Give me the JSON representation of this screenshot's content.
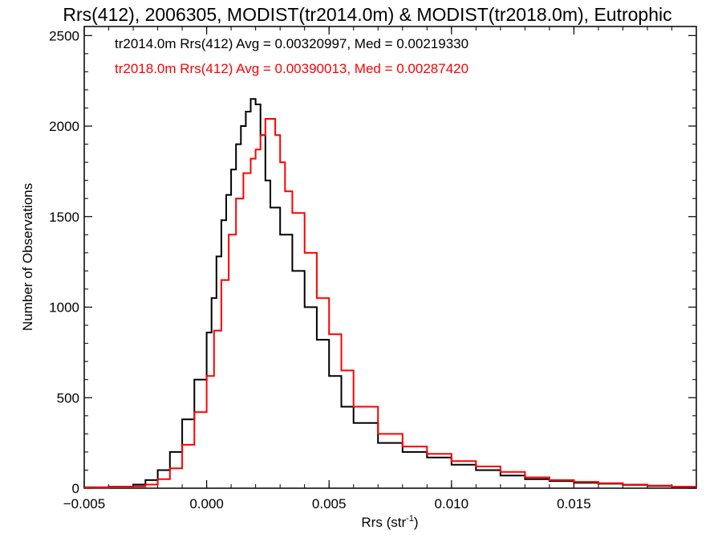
{
  "chart_data": {
    "type": "line",
    "style": "histogram-step",
    "title": "Rrs(412), 2006305, MODIST(tr2014.0m) & MODIST(tr2018.0m), Eutrophic",
    "xlabel": "Rrs (str",
    "xlabel_sup": "-1",
    "xlabel_close": ")",
    "ylabel": "Number of Observations",
    "xlim": [
      -0.005,
      0.02
    ],
    "ylim": [
      0,
      2550
    ],
    "xticks": [
      -0.005,
      0.0,
      0.005,
      0.01,
      0.015
    ],
    "xtick_labels": [
      "−0.005",
      "0.000",
      "0.005",
      "0.010",
      "0.015"
    ],
    "yticks": [
      0,
      500,
      1000,
      1500,
      2000,
      2500
    ],
    "ytick_labels": [
      "0",
      "500",
      "1000",
      "1500",
      "2000",
      "2500"
    ],
    "grid": false,
    "legend": "annotations top-left",
    "annotations": [
      {
        "text": "tr2014.0m Rrs(412) Avg = 0.00320997, Med = 0.00219330",
        "color": "#000000"
      },
      {
        "text": "tr2018.0m Rrs(412) Avg = 0.00390013, Med = 0.00287420",
        "color": "#ff0000"
      }
    ],
    "series": [
      {
        "color": "#000000",
        "points": [
          [
            -0.005,
            5
          ],
          [
            -0.004,
            8
          ],
          [
            -0.003,
            20
          ],
          [
            -0.0025,
            45
          ],
          [
            -0.002,
            100
          ],
          [
            -0.0015,
            200
          ],
          [
            -0.001,
            380
          ],
          [
            -0.0005,
            600
          ],
          [
            0.0,
            860
          ],
          [
            0.0002,
            1050
          ],
          [
            0.0004,
            1280
          ],
          [
            0.0006,
            1480
          ],
          [
            0.0008,
            1620
          ],
          [
            0.001,
            1760
          ],
          [
            0.0012,
            1900
          ],
          [
            0.0014,
            2000
          ],
          [
            0.0016,
            2080
          ],
          [
            0.0018,
            2150
          ],
          [
            0.002,
            2120
          ],
          [
            0.0022,
            1950
          ],
          [
            0.0024,
            1700
          ],
          [
            0.0026,
            1550
          ],
          [
            0.003,
            1400
          ],
          [
            0.0035,
            1200
          ],
          [
            0.004,
            1000
          ],
          [
            0.0045,
            820
          ],
          [
            0.005,
            620
          ],
          [
            0.0055,
            450
          ],
          [
            0.006,
            360
          ],
          [
            0.007,
            250
          ],
          [
            0.008,
            200
          ],
          [
            0.009,
            170
          ],
          [
            0.01,
            130
          ],
          [
            0.011,
            100
          ],
          [
            0.012,
            70
          ],
          [
            0.013,
            50
          ],
          [
            0.014,
            40
          ],
          [
            0.015,
            30
          ],
          [
            0.016,
            25
          ],
          [
            0.017,
            18
          ],
          [
            0.018,
            12
          ],
          [
            0.019,
            8
          ],
          [
            0.02,
            5
          ]
        ]
      },
      {
        "color": "#ff0000",
        "points": [
          [
            -0.005,
            3
          ],
          [
            -0.004,
            5
          ],
          [
            -0.003,
            10
          ],
          [
            -0.0025,
            20
          ],
          [
            -0.002,
            50
          ],
          [
            -0.0015,
            110
          ],
          [
            -0.001,
            240
          ],
          [
            -0.0005,
            420
          ],
          [
            0.0,
            620
          ],
          [
            0.0003,
            870
          ],
          [
            0.0006,
            1150
          ],
          [
            0.0009,
            1400
          ],
          [
            0.0012,
            1600
          ],
          [
            0.0015,
            1740
          ],
          [
            0.0018,
            1820
          ],
          [
            0.002,
            1870
          ],
          [
            0.0022,
            1950
          ],
          [
            0.0024,
            2040
          ],
          [
            0.0026,
            2040
          ],
          [
            0.0028,
            1950
          ],
          [
            0.003,
            1800
          ],
          [
            0.0032,
            1640
          ],
          [
            0.0035,
            1520
          ],
          [
            0.004,
            1300
          ],
          [
            0.0045,
            1050
          ],
          [
            0.005,
            850
          ],
          [
            0.0055,
            650
          ],
          [
            0.006,
            450
          ],
          [
            0.007,
            300
          ],
          [
            0.008,
            230
          ],
          [
            0.009,
            190
          ],
          [
            0.01,
            150
          ],
          [
            0.011,
            120
          ],
          [
            0.012,
            90
          ],
          [
            0.013,
            60
          ],
          [
            0.014,
            45
          ],
          [
            0.015,
            35
          ],
          [
            0.016,
            28
          ],
          [
            0.017,
            20
          ],
          [
            0.018,
            14
          ],
          [
            0.019,
            8
          ],
          [
            0.02,
            5
          ]
        ]
      }
    ]
  }
}
